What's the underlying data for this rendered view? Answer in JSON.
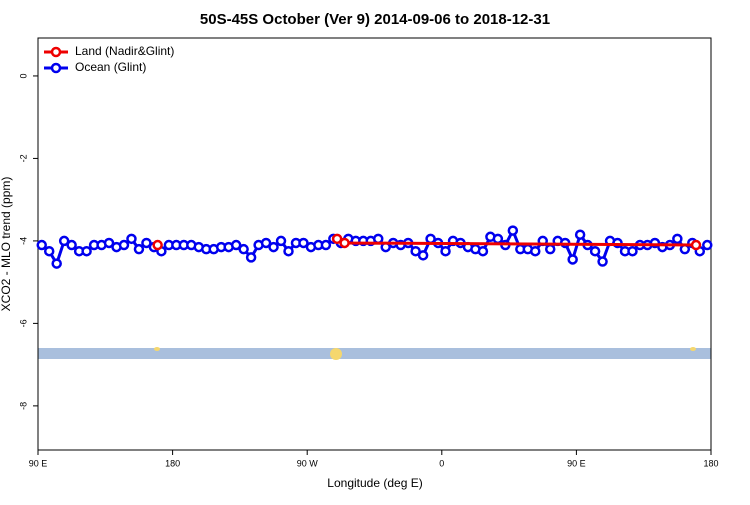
{
  "chart_data": {
    "type": "line",
    "title": "50S-45S October (Ver 9)   2014-09-06 to 2018-12-31",
    "x_label": "Longitude (deg E)",
    "y_label": "XCO2 - MLO trend (ppm)",
    "xlim": [
      90,
      540
    ],
    "ylim": [
      -9.07,
      0.92
    ],
    "xticks": [
      {
        "value": 90,
        "label": "90 E"
      },
      180,
      {
        "value": 270,
        "label": "90 W"
      },
      {
        "value": 360,
        "label": "0"
      },
      {
        "value": 450,
        "label": "90 E"
      },
      {
        "value": 540,
        "label": "180"
      }
    ],
    "yticks": [
      0,
      -2,
      -4,
      -6,
      -8
    ],
    "legend": "top-left",
    "series": [
      {
        "name": "Land (Nadir&Glint)",
        "color": "#ee0000",
        "x": [
          170,
          175,
          290,
          295,
          530
        ],
        "values": [
          -4.1,
          null,
          -3.95,
          -4.05,
          -4.1
        ]
      },
      {
        "name": "Ocean (Glint)",
        "color": "#0000ee",
        "x": [
          92.5,
          97.5,
          102.5,
          107.5,
          112.5,
          117.5,
          122.5,
          127.5,
          132.5,
          137.5,
          142.5,
          147.5,
          152.5,
          157.5,
          162.5,
          167.5,
          172.5,
          177.5,
          182.5,
          187.5,
          192.5,
          197.5,
          202.5,
          207.5,
          212.5,
          217.5,
          222.5,
          227.5,
          232.5,
          237.5,
          242.5,
          247.5,
          252.5,
          257.5,
          262.5,
          267.5,
          272.5,
          277.5,
          282.5,
          287.5,
          292.5,
          297.5,
          302.5,
          307.5,
          312.5,
          317.5,
          322.5,
          327.5,
          332.5,
          337.5,
          342.5,
          347.5,
          352.5,
          357.5,
          362.5,
          367.5,
          372.5,
          377.5,
          382.5,
          387.5,
          392.5,
          397.5,
          402.5,
          407.5,
          412.5,
          417.5,
          422.5,
          427.5,
          432.5,
          437.5,
          442.5,
          447.5,
          452.5,
          457.5,
          462.5,
          467.5,
          472.5,
          477.5,
          482.5,
          487.5,
          492.5,
          497.5,
          502.5,
          507.5,
          512.5,
          517.5,
          522.5,
          527.5,
          532.5,
          537.5
        ],
        "values": [
          -4.1,
          -4.25,
          -4.55,
          -4.0,
          -4.1,
          -4.25,
          -4.25,
          -4.1,
          -4.1,
          -4.05,
          -4.15,
          -4.1,
          -3.95,
          -4.2,
          -4.05,
          -4.15,
          -4.25,
          -4.1,
          -4.1,
          -4.1,
          -4.1,
          -4.15,
          -4.2,
          -4.2,
          -4.15,
          -4.15,
          -4.1,
          -4.2,
          -4.4,
          -4.1,
          -4.05,
          -4.15,
          -4.0,
          -4.25,
          -4.05,
          -4.05,
          -4.15,
          -4.1,
          -4.1,
          -3.95,
          -4.05,
          -3.95,
          -4.0,
          -4.0,
          -4.0,
          -3.95,
          -4.15,
          -4.05,
          -4.1,
          -4.05,
          -4.25,
          -4.35,
          -3.95,
          -4.05,
          -4.25,
          -4.0,
          -4.05,
          -4.15,
          -4.2,
          -4.25,
          -3.9,
          -3.95,
          -4.1,
          -3.75,
          -4.2,
          -4.2,
          -4.25,
          -4.0,
          -4.2,
          -4.0,
          -4.05,
          -4.45,
          -3.85,
          -4.1,
          -4.25,
          -4.5,
          -4.0,
          -4.05,
          -4.25,
          -4.25,
          -4.1,
          -4.1,
          -4.05,
          -4.15,
          -4.1,
          -3.95,
          -4.2,
          -4.05,
          -4.25,
          -4.1
        ]
      }
    ]
  }
}
